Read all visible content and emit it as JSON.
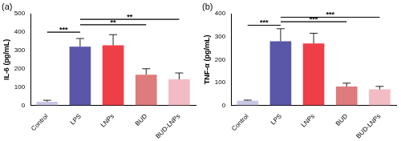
{
  "chart_data": [
    {
      "type": "bar",
      "title": "(a)",
      "y_label": "IL-6 (pg/mL)",
      "categories": [
        "Control",
        "LPS",
        "LNPs",
        "BUD",
        "BUD-LNPs"
      ],
      "values": [
        20,
        320,
        328,
        168,
        142
      ],
      "errors": [
        8,
        45,
        58,
        32,
        35
      ],
      "colors": [
        "#c9c7e6",
        "#5a57a8",
        "#ee3f48",
        "#de7b7d",
        "#f3bcc5"
      ],
      "ylim": [
        0,
        500
      ],
      "yticks": [
        0,
        100,
        200,
        300,
        400,
        500
      ],
      "grid": false,
      "annotations": [
        {
          "from": "Control",
          "to": "LPS",
          "y": 400,
          "text": "***"
        },
        {
          "from": "LPS",
          "to": "BUD",
          "y": 440,
          "text": "**"
        },
        {
          "from": "LPS",
          "to": "BUD-LNPs",
          "y": 470,
          "text": "**"
        }
      ]
    },
    {
      "type": "bar",
      "title": "(b)",
      "y_label": "TNF-α (pg/mL)",
      "categories": [
        "Control",
        "LPS",
        "LNPs",
        "BUD",
        "BUD-LNPs"
      ],
      "values": [
        20,
        280,
        270,
        82,
        70
      ],
      "errors": [
        3,
        55,
        45,
        15,
        13
      ],
      "colors": [
        "#c9c7e6",
        "#5a57a8",
        "#ee3f48",
        "#de7b7d",
        "#f3bcc5"
      ],
      "ylim": [
        0,
        400
      ],
      "yticks": [
        0,
        100,
        200,
        300,
        400
      ],
      "grid": false,
      "annotations": [
        {
          "from": "Control",
          "to": "LPS",
          "y": 350,
          "text": "***"
        },
        {
          "from": "LPS",
          "to": "BUD",
          "y": 365,
          "text": "***"
        },
        {
          "from": "LPS",
          "to": "BUD-LNPs",
          "y": 385,
          "text": "***"
        }
      ]
    }
  ]
}
